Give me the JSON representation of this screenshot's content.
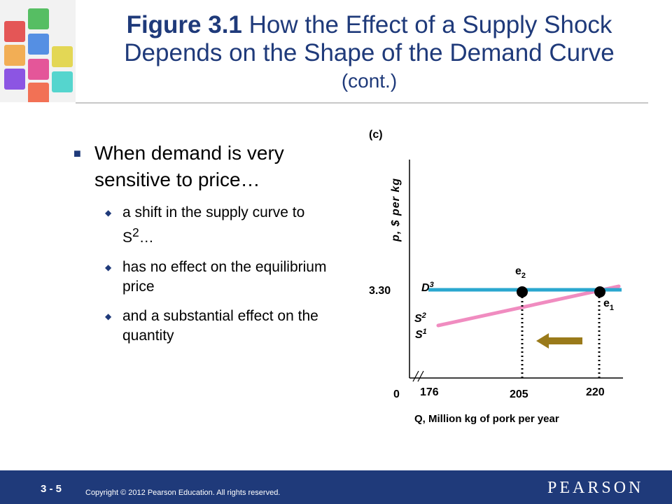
{
  "header": {
    "title_bold": "Figure 3.1",
    "title_rest": " How the Effect of a Supply Shock",
    "title_line2": "Depends on the Shape of the Demand Curve",
    "title_line3": "(cont.)"
  },
  "bullets": {
    "main": "When demand is very sensitive to price…",
    "sub1_a": "a shift in the supply curve to S",
    "sub1_sup": "2",
    "sub1_b": "…",
    "sub2": "has no effect on the equilibrium price",
    "sub3": "and a substantial effect on the quantity"
  },
  "chart_data": {
    "type": "line",
    "panel_label": "(c)",
    "ylabel": "p, $ per kg",
    "xlabel": "Q, Million kg of pork per year",
    "y_tick": "3.30",
    "origin_label": "0",
    "x_ticks": [
      "176",
      "205",
      "220"
    ],
    "demand_label": "D",
    "demand_sub": "3",
    "supply_labels": [
      {
        "base": "S",
        "sub": "2"
      },
      {
        "base": "S",
        "sub": "1"
      }
    ],
    "equilibria": [
      {
        "base": "e",
        "sub": "1",
        "q": 220,
        "p": 3.3
      },
      {
        "base": "e",
        "sub": "2",
        "q": 205,
        "p": 3.3
      }
    ],
    "colors": {
      "demand": "#2aa7cf",
      "supply": "#f08cc0",
      "arrow": "#9a7a1a",
      "title": "#1f3a7a"
    }
  },
  "footer": {
    "slide_number": "3 - 5",
    "copyright": "Copyright © 2012  Pearson Education. All rights reserved.",
    "brand": "PEARSON"
  }
}
